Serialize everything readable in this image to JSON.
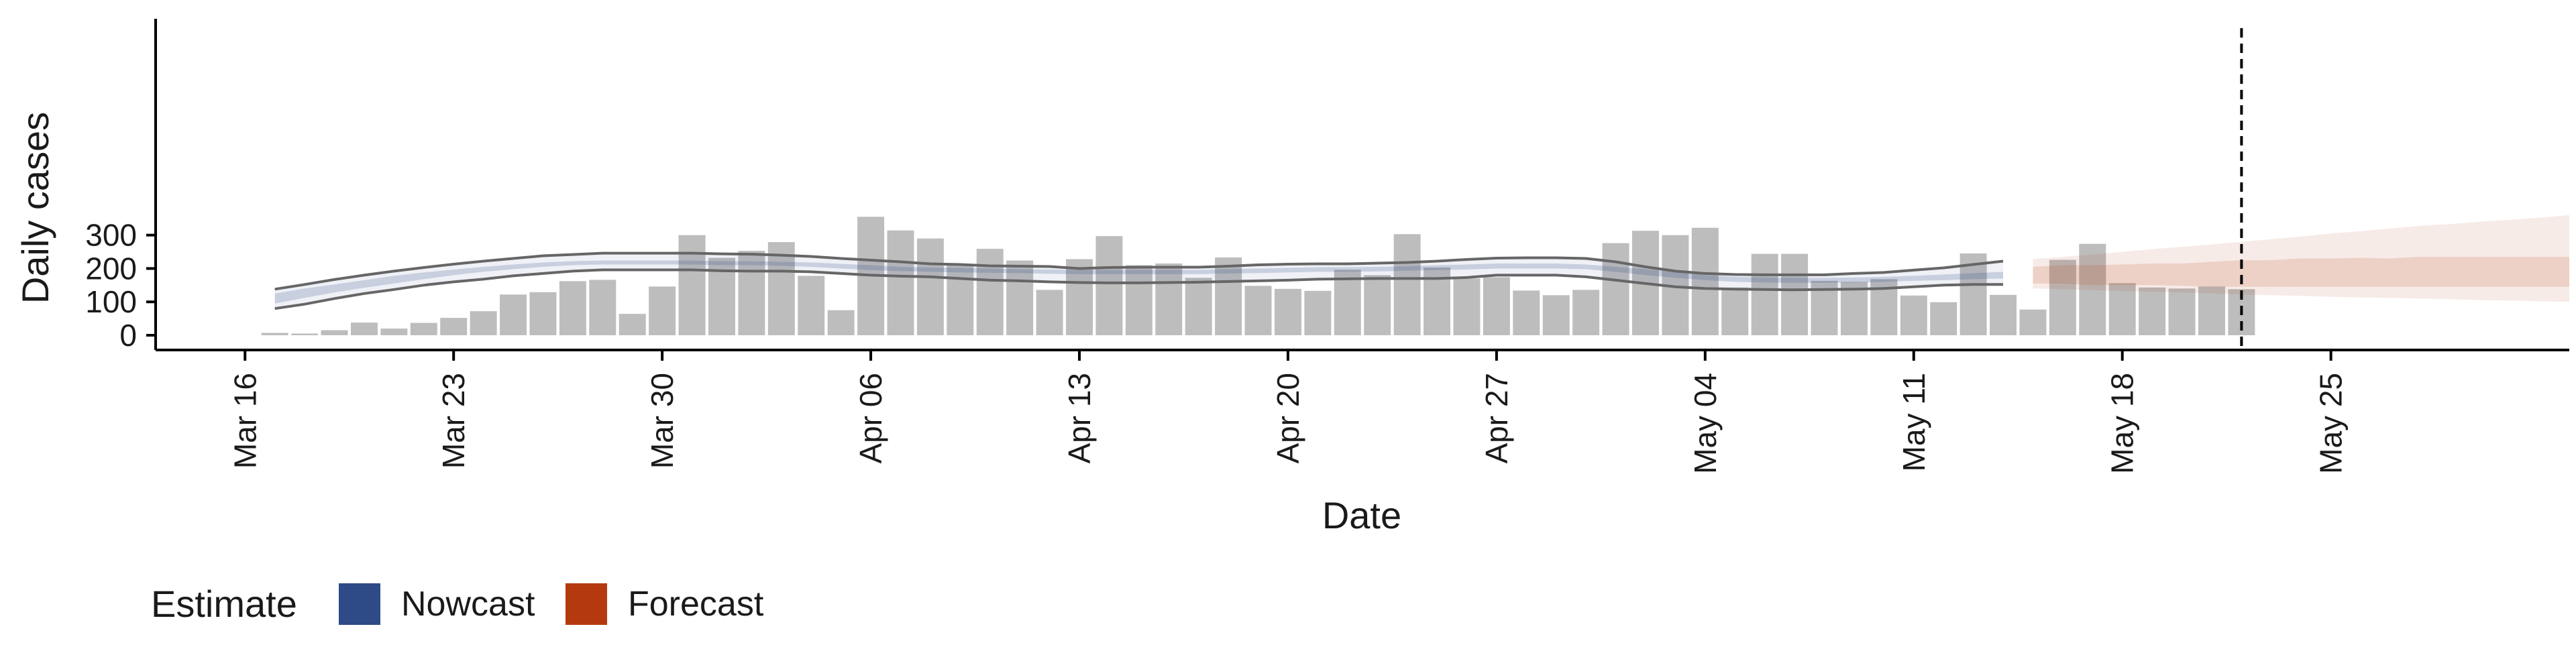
{
  "chart_data": {
    "type": "bar",
    "xlabel": "Date",
    "ylabel": "Daily cases",
    "ylim": [
      0,
      380
    ],
    "y_ticks": [
      0,
      100,
      200,
      300
    ],
    "x_ticks": [
      "Mar 16",
      "Mar 23",
      "Mar 30",
      "Apr 06",
      "Apr 13",
      "Apr 20",
      "Apr 27",
      "May 04",
      "May 11",
      "May 18",
      "May 25"
    ],
    "x_tick_dates": [
      "2020-03-16",
      "2020-03-23",
      "2020-03-30",
      "2020-04-06",
      "2020-04-13",
      "2020-04-20",
      "2020-04-27",
      "2020-05-04",
      "2020-05-11",
      "2020-05-18",
      "2020-05-25"
    ],
    "x_range": [
      "2020-03-13",
      "2020-06-02"
    ],
    "legend": {
      "title": "Estimate",
      "position": "bottom-left",
      "entries": [
        {
          "label": "Nowcast",
          "color": "#2e4a87"
        },
        {
          "label": "Forecast",
          "color": "#b5390f"
        }
      ]
    },
    "colors": {
      "bar": "#bdbdbd",
      "nowcast": "#2e4a87",
      "forecast": "#b5390f",
      "line": "#666666",
      "axis": "#000000"
    },
    "grid": false,
    "vline_date": "2020-05-22",
    "bars": {
      "start_date": "2020-03-17",
      "values": [
        7,
        5,
        15,
        38,
        20,
        37,
        52,
        72,
        122,
        129,
        162,
        166,
        64,
        146,
        300,
        232,
        253,
        279,
        178,
        75,
        355,
        314,
        290,
        210,
        259,
        224,
        136,
        228,
        297,
        210,
        215,
        172,
        233,
        148,
        139,
        133,
        196,
        180,
        303,
        203,
        170,
        174,
        134,
        120,
        136,
        276,
        313,
        300,
        322,
        143,
        244,
        244,
        163,
        160,
        168,
        119,
        99,
        245,
        121,
        77,
        226,
        274,
        156,
        143,
        140,
        146,
        138
      ]
    },
    "nowcast": {
      "start_date": "2020-03-17",
      "inner_low": [
        95,
        112,
        128,
        142,
        155,
        168,
        180,
        190,
        198,
        205,
        210,
        212,
        212,
        212,
        212,
        210,
        210,
        208,
        205,
        200,
        195,
        192,
        190,
        188,
        187,
        186,
        184,
        183,
        183,
        183,
        183,
        183,
        185,
        186,
        188,
        190,
        190,
        191,
        193,
        195,
        197,
        200,
        200,
        200,
        198,
        190,
        180,
        172,
        165,
        160,
        158,
        157,
        157,
        158,
        160,
        163,
        165,
        168,
        170
      ],
      "inner_high": [
        125,
        140,
        152,
        165,
        178,
        188,
        197,
        205,
        212,
        218,
        222,
        224,
        224,
        224,
        224,
        222,
        222,
        220,
        218,
        214,
        210,
        205,
        203,
        202,
        200,
        198,
        197,
        196,
        196,
        196,
        196,
        196,
        198,
        200,
        202,
        204,
        204,
        205,
        207,
        210,
        212,
        215,
        215,
        215,
        212,
        205,
        198,
        190,
        180,
        175,
        173,
        172,
        172,
        173,
        175,
        178,
        182,
        186,
        190
      ],
      "outer_low": [
        80,
        93,
        110,
        125,
        137,
        150,
        160,
        168,
        178,
        185,
        192,
        196,
        196,
        196,
        196,
        193,
        192,
        192,
        190,
        185,
        180,
        177,
        175,
        170,
        165,
        163,
        160,
        158,
        157,
        157,
        158,
        159,
        161,
        163,
        165,
        168,
        169,
        170,
        170,
        170,
        173,
        180,
        180,
        180,
        175,
        165,
        155,
        145,
        140,
        138,
        137,
        136,
        137,
        138,
        140,
        145,
        150,
        152,
        152
      ],
      "outer_high": [
        138,
        152,
        167,
        180,
        192,
        203,
        213,
        222,
        230,
        238,
        242,
        246,
        246,
        246,
        246,
        244,
        243,
        240,
        236,
        230,
        225,
        220,
        214,
        212,
        208,
        207,
        206,
        200,
        203,
        204,
        204,
        204,
        207,
        211,
        213,
        214,
        214,
        216,
        218,
        222,
        227,
        231,
        232,
        232,
        230,
        220,
        205,
        192,
        185,
        182,
        181,
        181,
        181,
        185,
        188,
        195,
        202,
        212,
        222
      ]
    },
    "forecast": {
      "start_date": "2020-05-15",
      "inner_low": [
        155,
        155,
        150,
        150,
        150,
        148,
        145,
        145,
        145,
        145,
        145,
        145,
        145,
        145,
        145,
        145,
        145,
        145,
        145
      ],
      "inner_high": [
        205,
        210,
        210,
        212,
        215,
        215,
        220,
        225,
        225,
        230,
        230,
        232,
        230,
        235,
        235,
        235,
        235,
        235,
        235
      ],
      "outer_low": [
        140,
        138,
        135,
        132,
        130,
        128,
        125,
        122,
        120,
        118,
        115,
        113,
        112,
        110,
        108,
        105,
        104,
        102,
        100
      ],
      "outer_high": [
        228,
        235,
        242,
        250,
        258,
        265,
        272,
        280,
        288,
        296,
        305,
        312,
        320,
        328,
        333,
        340,
        346,
        352,
        360
      ]
    }
  }
}
